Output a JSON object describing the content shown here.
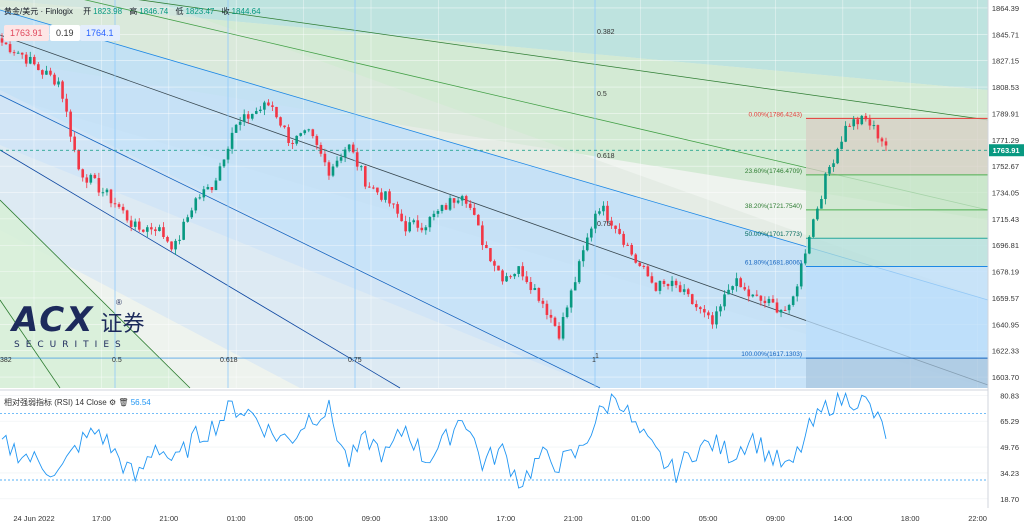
{
  "header": {
    "symbol": "黄金/美元 · Finlogix",
    "open_label": "开",
    "open": "1823.98",
    "high_label": "高",
    "high": "1846.74",
    "low_label": "低",
    "low": "1823.47",
    "close_label": "收",
    "close": "1844.64"
  },
  "quote": {
    "bid": "1763.91",
    "spread": "0.19",
    "ask": "1764.1"
  },
  "rsi": {
    "title": "相对强弱指标 (RSI)",
    "params": "14 Close",
    "value": "56.54"
  },
  "logo": {
    "main": "ACX",
    "cn": "证券",
    "sub": "SECURITIES"
  },
  "colors": {
    "up": "#089981",
    "down": "#f23645",
    "rsi": "#2196f3",
    "fib_line": "#e0475c"
  },
  "chart_data": [
    {
      "type": "candlestick",
      "title": "",
      "yaxis_ticks": [
        1864.39,
        1845.71,
        1827.15,
        1808.53,
        1789.91,
        1771.29,
        1752.67,
        1734.05,
        1715.43,
        1696.81,
        1678.19,
        1659.57,
        1640.95,
        1622.33,
        1603.7
      ],
      "ylim": [
        1596,
        1870
      ],
      "xaxis_ticks": [
        "24 Jun 2022",
        "17:00",
        "21:00",
        "01:00",
        "05:00",
        "09:00",
        "13:00",
        "17:00",
        "21:00",
        "01:00",
        "05:00",
        "09:00",
        "14:00",
        "18:00",
        "22:00"
      ],
      "current_price": "1763.91",
      "close_anchors": [
        1840,
        1832,
        1820,
        1812,
        1750,
        1738,
        1725,
        1708,
        1710,
        1695,
        1728,
        1740,
        1778,
        1790,
        1797,
        1770,
        1775,
        1750,
        1768,
        1740,
        1730,
        1710,
        1712,
        1723,
        1736,
        1700,
        1675,
        1680,
        1660,
        1635,
        1680,
        1726,
        1710,
        1685,
        1668,
        1668,
        1655,
        1640,
        1672,
        1660,
        1655,
        1650,
        1705,
        1750,
        1783,
        1785,
        1768
      ],
      "fib_retracement": [
        {
          "label": "0.00%(1786.4243)",
          "price": 1786.4243
        },
        {
          "label": "23.60%(1746.4709)",
          "price": 1746.4709
        },
        {
          "label": "38.20%(1721.7540)",
          "price": 1721.754
        },
        {
          "label": "50.00%(1701.7773)",
          "price": 1701.7773
        },
        {
          "label": "61.80%(1681.8006)",
          "price": 1681.8006
        },
        {
          "label": "100.00%(1617.1303)",
          "price": 1617.1303
        }
      ],
      "pitchfork_labels": [
        "0.382",
        "0.5",
        "0.618",
        "0.75",
        "1",
        "0.5",
        "0.618",
        "0.75",
        "1",
        "382"
      ]
    },
    {
      "type": "line",
      "name": "RSI",
      "yaxis_ticks": [
        80.83,
        65.29,
        49.76,
        34.23,
        18.7
      ],
      "ylim": [
        15,
        84
      ],
      "levels": [
        70,
        30
      ],
      "anchors": [
        52,
        46,
        40,
        34,
        52,
        60,
        44,
        30,
        52,
        40,
        55,
        62,
        74,
        70,
        58,
        54,
        68,
        72,
        40,
        55,
        44,
        62,
        42,
        52,
        70,
        40,
        48,
        28,
        44,
        40,
        46,
        68,
        82,
        60,
        46,
        34,
        48,
        52,
        45,
        56,
        44,
        36,
        60,
        75,
        80,
        76,
        58
      ]
    }
  ]
}
